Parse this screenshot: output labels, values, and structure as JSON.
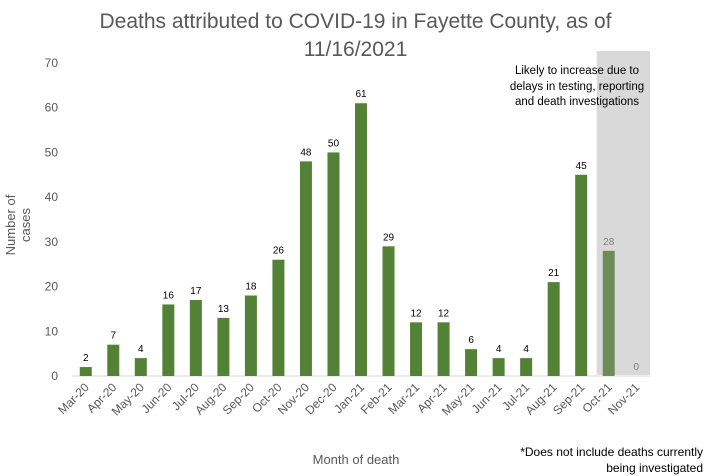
{
  "chart_data": {
    "type": "bar",
    "title_lines": [
      "Deaths attributed to COVID-19 in Fayette County, as of",
      "11/16/2021"
    ],
    "xlabel": "Month of death",
    "ylabel": "Number of cases",
    "ylim": [
      0,
      70
    ],
    "yticks": [
      0,
      10,
      20,
      30,
      40,
      50,
      60,
      70
    ],
    "categories": [
      "Mar-20",
      "Apr-20",
      "May-20",
      "Jun-20",
      "Jul-20",
      "Aug-20",
      "Sep-20",
      "Oct-20",
      "Nov-20",
      "Dec-20",
      "Jan-21",
      "Feb-21",
      "Mar-21",
      "Apr-21",
      "May-21",
      "Jun-21",
      "Jul-21",
      "Aug-21",
      "Sep-21",
      "Oct-21",
      "Nov-21"
    ],
    "values": [
      2,
      7,
      4,
      16,
      17,
      13,
      18,
      26,
      48,
      50,
      61,
      29,
      12,
      12,
      6,
      4,
      4,
      21,
      45,
      28,
      0
    ],
    "shaded_categories": [
      "Oct-21",
      "Nov-21"
    ],
    "grid": false,
    "legend": "none",
    "colors": {
      "bar": "#538135",
      "bar_shaded": "#6e8c5a",
      "shade_region": "#d9d9d9",
      "axis_text": "#595959"
    },
    "annotation": "Likely to increase due to delays in testing, reporting and death investigations",
    "footnote_lines": [
      "*Does not include deaths currently",
      "being investigated"
    ]
  }
}
